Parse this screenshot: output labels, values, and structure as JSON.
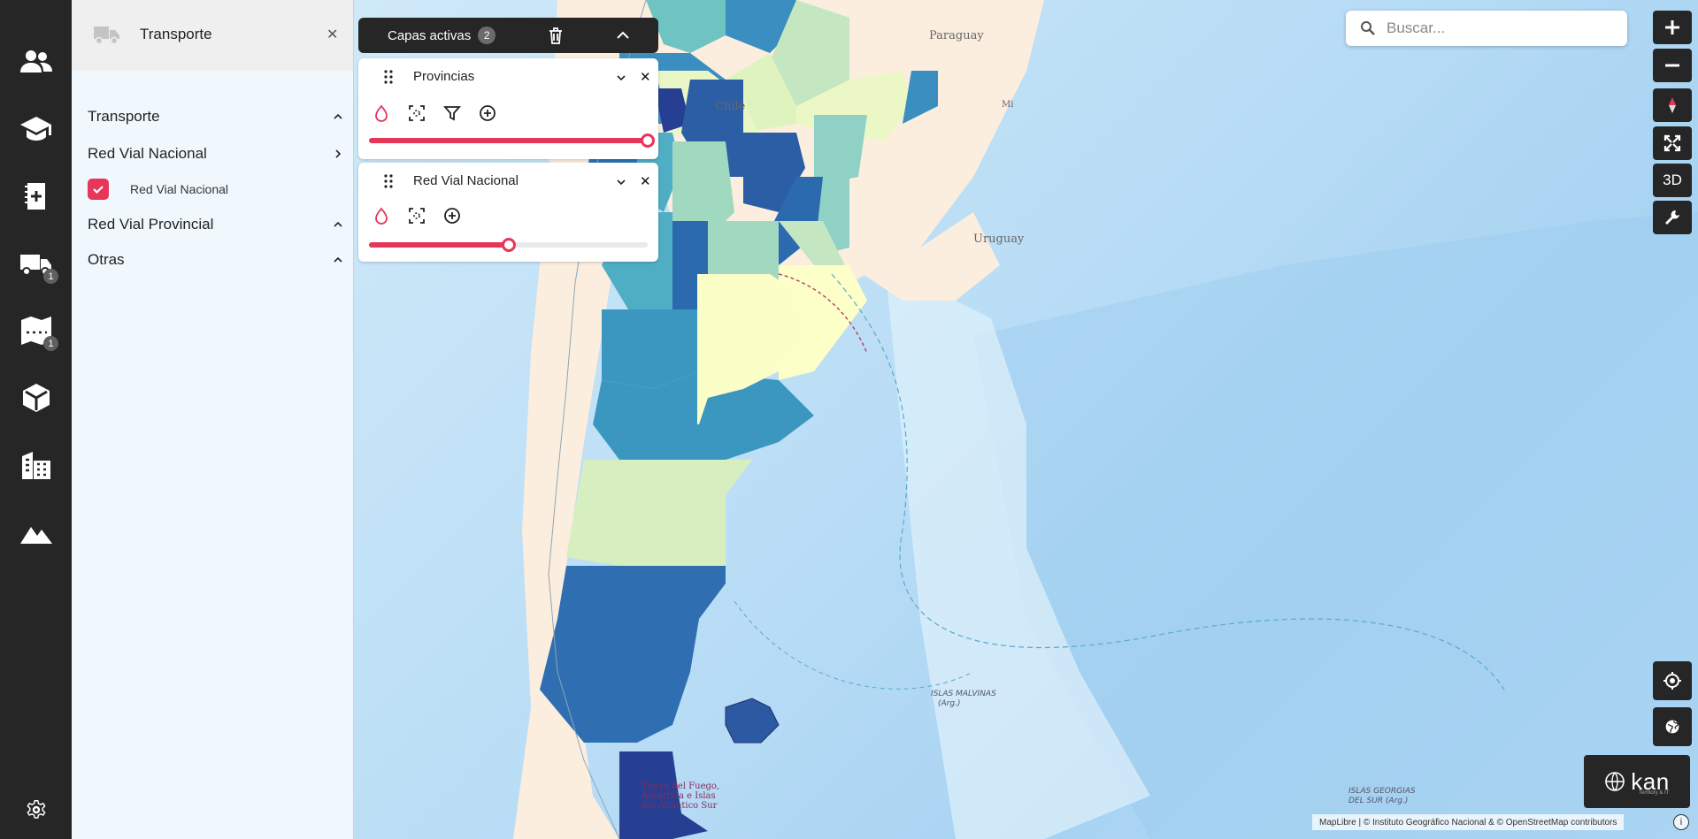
{
  "colors": {
    "accent": "#e8355a",
    "rail": "#262626",
    "panel_bg": "#f1f8fd"
  },
  "rail": {
    "items": [
      {
        "icon": "people-icon"
      },
      {
        "icon": "graduation-cap-icon"
      },
      {
        "icon": "add-notebook-icon"
      },
      {
        "icon": "truck-icon",
        "badge": "1"
      },
      {
        "icon": "map-route-icon",
        "badge": "1"
      },
      {
        "icon": "cube-icon"
      },
      {
        "icon": "buildings-icon"
      },
      {
        "icon": "mountains-icon"
      },
      {
        "icon": "gear-icon"
      }
    ]
  },
  "panel": {
    "title": "Transporte",
    "close": "✕",
    "sections": [
      {
        "label": "Transporte",
        "state": "expanded"
      },
      {
        "label": "Red Vial Nacional",
        "state": "collapsed"
      },
      {
        "label": "Red Vial Provincial",
        "state": "expanded"
      },
      {
        "label": "Otras",
        "state": "expanded"
      }
    ],
    "layer": {
      "label": "Red Vial Nacional",
      "checked": true
    }
  },
  "active_layers": {
    "title": "Capas activas",
    "count": "2",
    "cards": [
      {
        "name": "Provincias",
        "opacity": 1.0,
        "close": "✕",
        "tools": [
          "drop-icon",
          "extent-icon",
          "filter-icon",
          "add-circle-icon"
        ]
      },
      {
        "name": "Red Vial Nacional",
        "opacity": 0.5,
        "close": "✕",
        "tools": [
          "drop-icon",
          "extent-icon",
          "add-circle-icon"
        ]
      }
    ]
  },
  "search": {
    "placeholder": "Buscar..."
  },
  "controls": {
    "three_d": "3D"
  },
  "map_labels": {
    "paraguay": "Paraguay",
    "chile": "Chile",
    "uruguay": "Uruguay",
    "misiones": "Mi",
    "malvinas": "ISLAS MALVINAS",
    "malvinas_sub": "(Arg.)",
    "georgias": "ISLAS GEORGIAS",
    "georgias_sub": "DEL SUR (Arg.)",
    "tierra_fuego_1": "Tierra del Fuego,",
    "tierra_fuego_2": "Antártida e Islas",
    "tierra_fuego_3": "del Atlántico Sur"
  },
  "brand": {
    "name": "kan",
    "sub": "Territory & IT"
  },
  "attribution": {
    "text": "MapLibre | © Instituto Geográfico Nacional & © OpenStreetMap contributors",
    "info": "i"
  }
}
